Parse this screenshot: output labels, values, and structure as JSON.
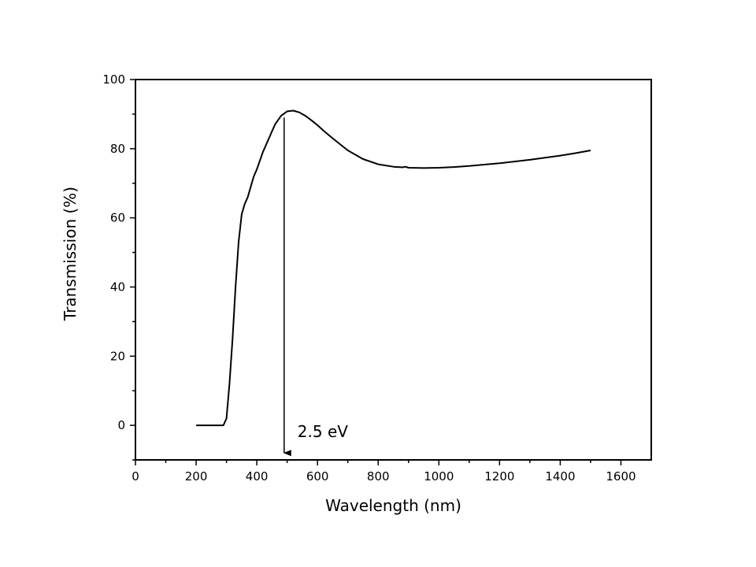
{
  "chart_data": {
    "type": "line",
    "title": "",
    "xlabel": "Wavelength (nm)",
    "ylabel": "Transmission (%)",
    "xlim": [
      0,
      1700
    ],
    "ylim": [
      -10,
      100
    ],
    "x_ticks": [
      "0",
      "200",
      "400",
      "600",
      "800",
      "1000",
      "1200",
      "1400",
      "1600"
    ],
    "y_ticks": [
      "0",
      "20",
      "40",
      "60",
      "80",
      "100"
    ],
    "grid": false,
    "legend": "none",
    "series": [
      {
        "color": "#000000",
        "x": [
          200,
          250,
          290,
          300,
          310,
          320,
          330,
          340,
          350,
          360,
          370,
          380,
          390,
          400,
          420,
          440,
          460,
          480,
          500,
          520,
          540,
          560,
          580,
          600,
          620,
          650,
          700,
          750,
          800,
          850,
          880,
          890,
          900,
          950,
          1000,
          1050,
          1100,
          1200,
          1300,
          1400,
          1450,
          1500
        ],
        "y": [
          0,
          0,
          0,
          2,
          12,
          25,
          40,
          53,
          61,
          64,
          66,
          69,
          72,
          74,
          79,
          83,
          87,
          89.5,
          90.8,
          91,
          90.5,
          89.5,
          88.2,
          86.8,
          85.2,
          83,
          79.5,
          77,
          75.5,
          74.8,
          74.6,
          74.8,
          74.5,
          74.4,
          74.5,
          74.7,
          75,
          75.8,
          76.8,
          78,
          78.7,
          79.5
        ]
      }
    ],
    "annotations": [
      {
        "text": "2.5 eV",
        "arrow_x": 490,
        "arrow_from_y": 89,
        "arrow_to_y": -8
      }
    ]
  }
}
